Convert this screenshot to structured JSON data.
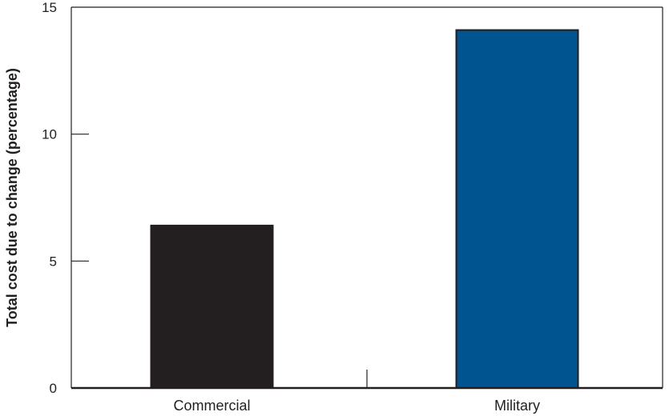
{
  "chart_data": {
    "type": "bar",
    "title": "",
    "xlabel": "",
    "ylabel": "Total cost due to change (percentage)",
    "categories": [
      "Commercial",
      "Military"
    ],
    "values": [
      6.4,
      14.1
    ],
    "ylim": [
      0,
      15
    ],
    "yticks": [
      0,
      5,
      10,
      15
    ],
    "ytick_labels": [
      "0",
      "5",
      "10",
      "15"
    ],
    "grid": false,
    "legend": "none",
    "colors": [
      "#231f20",
      "#00548f"
    ]
  }
}
